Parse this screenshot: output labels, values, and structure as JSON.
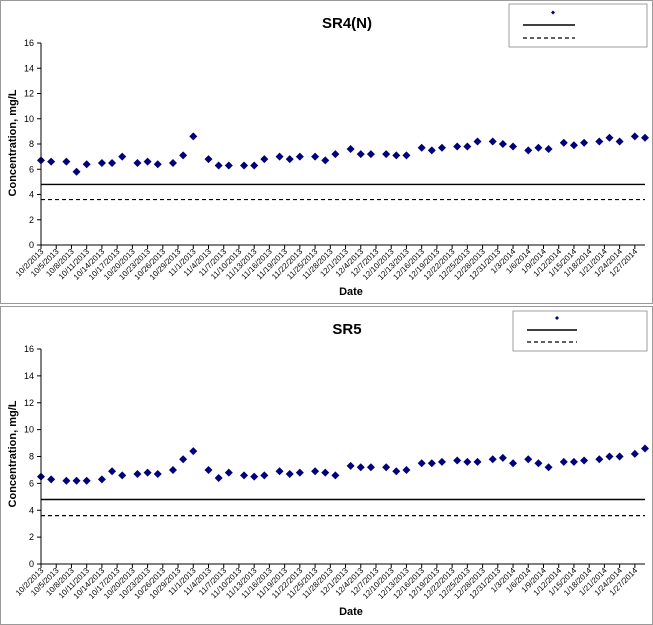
{
  "chart_data": [
    {
      "type": "scatter",
      "title": "SR4(N)",
      "xlabel": "Date",
      "ylabel": "Concentration, mg/L",
      "ylim": [
        0,
        16
      ],
      "yticks": [
        0,
        2,
        4,
        6,
        8,
        10,
        12,
        14,
        16
      ],
      "xticks": [
        "10/2/2013",
        "10/5/2013",
        "10/8/2013",
        "10/11/2013",
        "10/14/2013",
        "10/17/2013",
        "10/20/2013",
        "10/23/2013",
        "10/26/2013",
        "10/29/2013",
        "11/1/2013",
        "11/4/2013",
        "11/7/2013",
        "11/10/2013",
        "11/13/2013",
        "11/16/2013",
        "11/19/2013",
        "11/22/2013",
        "11/25/2013",
        "11/28/2013",
        "12/1/2013",
        "12/4/2013",
        "12/7/2013",
        "12/10/2013",
        "12/13/2013",
        "12/16/2013",
        "12/19/2013",
        "12/22/2013",
        "12/25/2013",
        "12/28/2013",
        "12/31/2013",
        "1/3/2014",
        "1/6/2014",
        "1/9/2014",
        "1/12/2014",
        "1/15/2014",
        "1/18/2014",
        "1/21/2014",
        "1/24/2014",
        "1/27/2014"
      ],
      "x_first": "10/2/2013",
      "x_last": "1/29/2014",
      "grid": false,
      "legend": "top-right",
      "legend_entries": [
        "",
        "",
        ""
      ],
      "marker_color": "#00007a",
      "series": [
        {
          "x": [
            "10/2/2013",
            "10/4/2013",
            "10/7/2013",
            "10/9/2013",
            "10/11/2013",
            "10/14/2013",
            "10/16/2013",
            "10/18/2013",
            "10/21/2013",
            "10/23/2013",
            "10/25/2013",
            "10/28/2013",
            "10/30/2013",
            "11/1/2013",
            "11/4/2013",
            "11/6/2013",
            "11/8/2013",
            "11/11/2013",
            "11/13/2013",
            "11/15/2013",
            "11/18/2013",
            "11/20/2013",
            "11/22/2013",
            "11/25/2013",
            "11/27/2013",
            "11/29/2013",
            "12/2/2013",
            "12/4/2013",
            "12/6/2013",
            "12/9/2013",
            "12/11/2013",
            "12/13/2013",
            "12/16/2013",
            "12/18/2013",
            "12/20/2013",
            "12/23/2013",
            "12/25/2013",
            "12/27/2013",
            "12/30/2013",
            "1/1/2014",
            "1/3/2014",
            "1/6/2014",
            "1/8/2014",
            "1/10/2014",
            "1/13/2014",
            "1/15/2014",
            "1/17/2014",
            "1/20/2014",
            "1/22/2014",
            "1/24/2014",
            "1/27/2014",
            "1/29/2014"
          ],
          "y": [
            6.7,
            6.6,
            6.6,
            5.8,
            6.4,
            6.5,
            6.5,
            7.0,
            6.5,
            6.6,
            6.4,
            6.5,
            7.1,
            8.6,
            6.8,
            6.3,
            6.3,
            6.3,
            6.3,
            6.8,
            7.0,
            6.8,
            7.0,
            7.0,
            6.7,
            7.2,
            7.6,
            7.2,
            7.2,
            7.2,
            7.1,
            7.1,
            7.7,
            7.5,
            7.7,
            7.8,
            7.8,
            8.2,
            8.2,
            8.0,
            7.8,
            7.5,
            7.7,
            7.6,
            8.1,
            7.9,
            8.1,
            8.2,
            8.5,
            8.2,
            8.6,
            8.5
          ]
        }
      ],
      "reference_lines": [
        {
          "y": 4.8,
          "style": "solid"
        },
        {
          "y": 3.6,
          "style": "dashed"
        }
      ]
    },
    {
      "type": "scatter",
      "title": "SR5",
      "xlabel": "Date",
      "ylabel": "Concentration, mg/L",
      "ylim": [
        0,
        16
      ],
      "yticks": [
        0,
        2,
        4,
        6,
        8,
        10,
        12,
        14,
        16
      ],
      "xticks": [
        "10/2/2013",
        "10/5/2013",
        "10/8/2013",
        "10/11/2013",
        "10/14/2013",
        "10/17/2013",
        "10/20/2013",
        "10/23/2013",
        "10/26/2013",
        "10/29/2013",
        "11/1/2013",
        "11/4/2013",
        "11/7/2013",
        "11/10/2013",
        "11/13/2013",
        "11/16/2013",
        "11/19/2013",
        "11/22/2013",
        "11/25/2013",
        "11/28/2013",
        "12/1/2013",
        "12/4/2013",
        "12/7/2013",
        "12/10/2013",
        "12/13/2013",
        "12/16/2013",
        "12/19/2013",
        "12/22/2013",
        "12/25/2013",
        "12/28/2013",
        "12/31/2013",
        "1/3/2014",
        "1/6/2014",
        "1/9/2014",
        "1/12/2014",
        "1/15/2014",
        "1/18/2014",
        "1/21/2014",
        "1/24/2014",
        "1/27/2014"
      ],
      "x_first": "10/2/2013",
      "x_last": "1/29/2014",
      "grid": false,
      "legend": "top-right",
      "legend_entries": [
        "",
        "",
        ""
      ],
      "marker_color": "#00007a",
      "series": [
        {
          "x": [
            "10/2/2013",
            "10/4/2013",
            "10/7/2013",
            "10/9/2013",
            "10/11/2013",
            "10/14/2013",
            "10/16/2013",
            "10/18/2013",
            "10/21/2013",
            "10/23/2013",
            "10/25/2013",
            "10/28/2013",
            "10/30/2013",
            "11/1/2013",
            "11/4/2013",
            "11/6/2013",
            "11/8/2013",
            "11/11/2013",
            "11/13/2013",
            "11/15/2013",
            "11/18/2013",
            "11/20/2013",
            "11/22/2013",
            "11/25/2013",
            "11/27/2013",
            "11/29/2013",
            "12/2/2013",
            "12/4/2013",
            "12/6/2013",
            "12/9/2013",
            "12/11/2013",
            "12/13/2013",
            "12/16/2013",
            "12/18/2013",
            "12/20/2013",
            "12/23/2013",
            "12/25/2013",
            "12/27/2013",
            "12/30/2013",
            "1/1/2014",
            "1/3/2014",
            "1/6/2014",
            "1/8/2014",
            "1/10/2014",
            "1/13/2014",
            "1/15/2014",
            "1/17/2014",
            "1/20/2014",
            "1/22/2014",
            "1/24/2014",
            "1/27/2014",
            "1/29/2014"
          ],
          "y": [
            6.5,
            6.3,
            6.2,
            6.2,
            6.2,
            6.3,
            6.9,
            6.6,
            6.7,
            6.8,
            6.7,
            7.0,
            7.8,
            8.4,
            7.0,
            6.4,
            6.8,
            6.6,
            6.5,
            6.6,
            6.9,
            6.7,
            6.8,
            6.9,
            6.8,
            6.6,
            7.3,
            7.2,
            7.2,
            7.2,
            6.9,
            7.0,
            7.5,
            7.5,
            7.6,
            7.7,
            7.6,
            7.6,
            7.8,
            7.9,
            7.5,
            7.8,
            7.5,
            7.2,
            7.6,
            7.6,
            7.7,
            7.8,
            8.0,
            8.0,
            8.2,
            8.6
          ]
        }
      ],
      "reference_lines": [
        {
          "y": 4.8,
          "style": "solid"
        },
        {
          "y": 3.6,
          "style": "dashed"
        }
      ]
    }
  ]
}
